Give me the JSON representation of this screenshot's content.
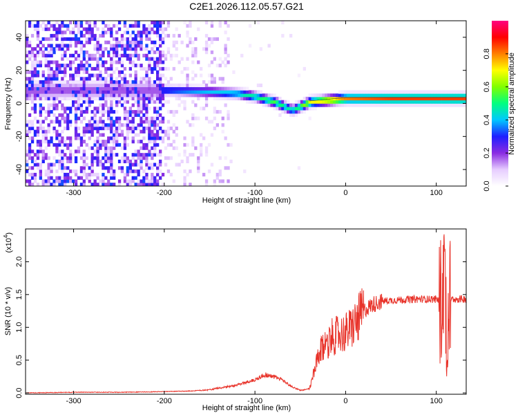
{
  "figure": {
    "title": "C2E1.2026.112.05.57.G21"
  },
  "chart_data": [
    {
      "type": "heatmap",
      "xlabel": "Height of straight line (km)",
      "ylabel": "Frequency (Hz)",
      "xlim": [
        -353,
        133
      ],
      "ylim": [
        -50,
        50
      ],
      "x_ticks": [
        -300,
        -200,
        -100,
        0,
        100
      ],
      "y_ticks": [
        -40,
        -20,
        0,
        20,
        40
      ],
      "colorbar": {
        "label": "Normalized spectral amplitude",
        "range": [
          0,
          1
        ],
        "ticks": [
          0.0,
          0.2,
          0.4,
          0.6,
          0.8
        ],
        "colors": [
          "#ffffff",
          "#e6ccff",
          "#8a2be2",
          "#1e1eff",
          "#00c8ff",
          "#00ff80",
          "#80ff00",
          "#ffff00",
          "#ff8000",
          "#ff0000",
          "#ff0080"
        ]
      },
      "ridge": [
        {
          "x": -200,
          "y": 7,
          "value": 0.35
        },
        {
          "x": -150,
          "y": 6,
          "value": 0.4
        },
        {
          "x": -120,
          "y": 5,
          "value": 0.45
        },
        {
          "x": -100,
          "y": 3,
          "value": 0.5
        },
        {
          "x": -80,
          "y": 0,
          "value": 0.55
        },
        {
          "x": -60,
          "y": -5,
          "value": 0.45
        },
        {
          "x": -40,
          "y": 0,
          "value": 0.7
        },
        {
          "x": 0,
          "y": 2,
          "value": 0.8
        },
        {
          "x": 50,
          "y": 2,
          "value": 0.85
        },
        {
          "x": 100,
          "y": 2,
          "value": 0.85
        },
        {
          "x": 133,
          "y": 2,
          "value": 0.85
        }
      ]
    },
    {
      "type": "line",
      "xlabel": "Height of straight line (km)",
      "ylabel": "SNR (10 * v/v)",
      "y_multiplier": "(x10",
      "y_exponent": "4",
      "xlim": [
        -353,
        133
      ],
      "ylim": [
        -0.02,
        2.5
      ],
      "x_ticks": [
        -300,
        -200,
        -100,
        0,
        100
      ],
      "y_ticks": [
        0.0,
        0.5,
        1.0,
        1.5,
        2.0
      ],
      "series": [
        {
          "color": "#e8332a",
          "x": [
            -353,
            -300,
            -250,
            -200,
            -170,
            -150,
            -120,
            -100,
            -90,
            -80,
            -70,
            -60,
            -50,
            -40,
            -35,
            -30,
            -25,
            -20,
            -15,
            -10,
            -5,
            0,
            5,
            10,
            15,
            20,
            30,
            40,
            60,
            80,
            100,
            105,
            108,
            110,
            112,
            115,
            120,
            133
          ],
          "y": [
            0.0,
            0.01,
            0.01,
            0.02,
            0.03,
            0.05,
            0.12,
            0.2,
            0.28,
            0.25,
            0.2,
            0.1,
            0.04,
            0.06,
            0.3,
            0.55,
            0.7,
            0.78,
            0.85,
            0.88,
            0.9,
            0.92,
            0.98,
            1.05,
            1.15,
            1.25,
            1.35,
            1.4,
            1.42,
            1.43,
            1.43,
            1.4,
            1.5,
            1.3,
            1.45,
            1.42,
            1.43,
            1.43
          ]
        }
      ]
    }
  ]
}
